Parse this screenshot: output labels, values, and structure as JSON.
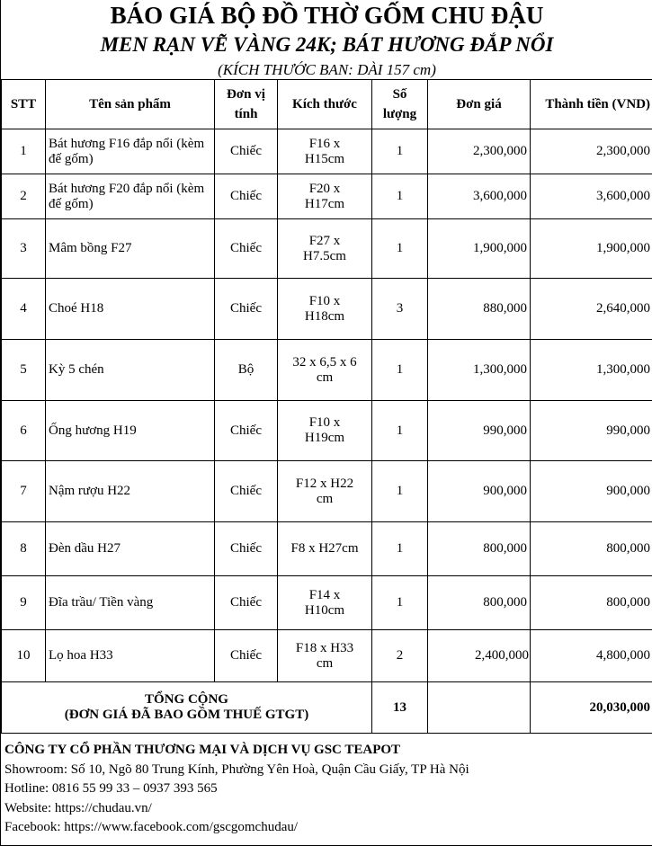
{
  "title": "BÁO GIÁ BỘ ĐỒ THỜ GỐM CHU ĐẬU",
  "subtitle": "MEN RẠN VẼ VÀNG 24K; BÁT HƯƠNG ĐẮP NỔI",
  "note": "(KÍCH THƯỚC BAN: DÀI 157 cm)",
  "headers": {
    "stt": "STT",
    "name": "Tên sản phẩm",
    "unit": "Đơn vị tính",
    "size": "Kích thước",
    "qty": "Số lượng",
    "price": "Đơn giá",
    "total": "Thành tiền (VND)"
  },
  "rows": [
    {
      "stt": "1",
      "name": "Bát hương F16 đắp nổi (kèm đế gốm)",
      "unit": "Chiếc",
      "size": "F16 x H15cm",
      "qty": "1",
      "price": "2,300,000",
      "total": "2,300,000"
    },
    {
      "stt": "2",
      "name": "Bát hương F20 đắp nổi (kèm đế gốm)",
      "unit": "Chiếc",
      "size": "F20 x H17cm",
      "qty": "1",
      "price": "3,600,000",
      "total": "3,600,000"
    },
    {
      "stt": "3",
      "name": "Mâm bồng F27",
      "unit": "Chiếc",
      "size": "F27 x H7.5cm",
      "qty": "1",
      "price": "1,900,000",
      "total": "1,900,000"
    },
    {
      "stt": "4",
      "name": "Choé H18",
      "unit": "Chiếc",
      "size": "F10 x H18cm",
      "qty": "3",
      "price": "880,000",
      "total": "2,640,000"
    },
    {
      "stt": "5",
      "name": "Kỳ 5 chén",
      "unit": "Bộ",
      "size": "32 x 6,5 x 6 cm",
      "qty": "1",
      "price": "1,300,000",
      "total": "1,300,000"
    },
    {
      "stt": "6",
      "name": "Ống hương H19",
      "unit": "Chiếc",
      "size": "F10 x H19cm",
      "qty": "1",
      "price": "990,000",
      "total": "990,000"
    },
    {
      "stt": "7",
      "name": "Nậm rượu H22",
      "unit": "Chiếc",
      "size": "F12 x H22 cm",
      "qty": "1",
      "price": "900,000",
      "total": "900,000"
    },
    {
      "stt": "8",
      "name": "Đèn dầu H27",
      "unit": "Chiếc",
      "size": "F8 x H27cm",
      "qty": "1",
      "price": "800,000",
      "total": "800,000"
    },
    {
      "stt": "9",
      "name": "Đĩa trầu/ Tiền vàng",
      "unit": "Chiếc",
      "size": "F14 x H10cm",
      "qty": "1",
      "price": "800,000",
      "total": "800,000"
    },
    {
      "stt": "10",
      "name": "Lọ hoa H33",
      "unit": "Chiếc",
      "size": "F18 x H33 cm",
      "qty": "2",
      "price": "2,400,000",
      "total": "4,800,000"
    }
  ],
  "summary": {
    "label1": "TỔNG CỘNG",
    "label2": "(ĐƠN GIÁ ĐÃ BAO GỒM THUẾ GTGT)",
    "qty": "13",
    "total": "20,030,000"
  },
  "footer": {
    "company": "CÔNG TY CỔ PHẦN THƯƠNG MẠI VÀ DỊCH VỤ GSC TEAPOT",
    "showroom": "Showroom: Số 10, Ngõ 80 Trung Kính, Phường Yên Hoà, Quận Cầu Giấy, TP Hà Nội",
    "hotline": "Hotline: 0816 55 99 33 – 0937 393 565",
    "website": "Website: https://chudau.vn/",
    "facebook": "Facebook: https://www.facebook.com/gscgomchudau/"
  }
}
